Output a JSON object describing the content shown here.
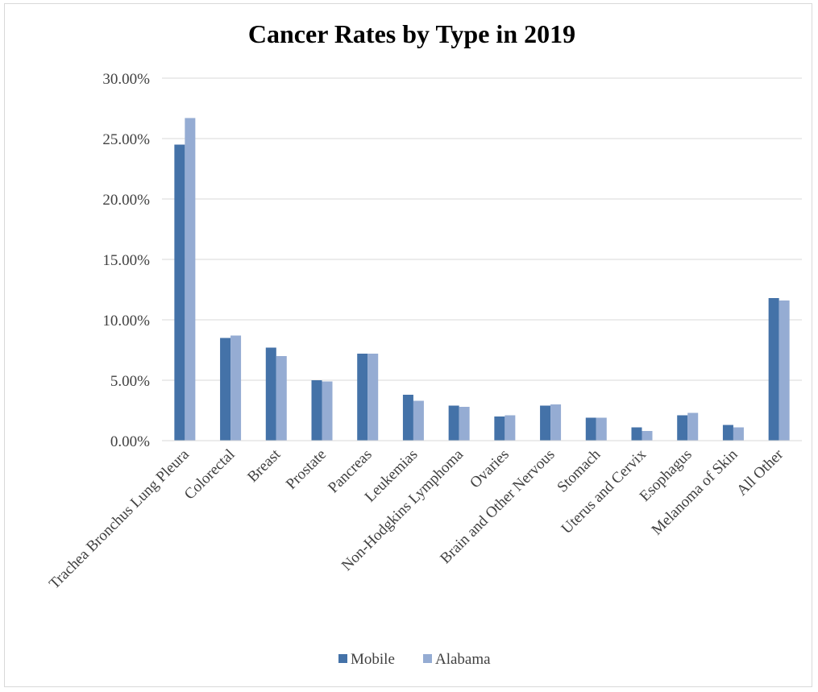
{
  "chart_data": {
    "type": "bar",
    "title": "Cancer Rates by Type in 2019",
    "xlabel": "",
    "ylabel": "",
    "ylim": [
      0,
      0.3
    ],
    "y_ticks": [
      "0.00%",
      "5.00%",
      "10.00%",
      "15.00%",
      "20.00%",
      "25.00%",
      "30.00%"
    ],
    "grid": true,
    "legend_position": "bottom",
    "categories": [
      "Trachea Bronchus Lung Pleura",
      "Colorectal",
      "Breast",
      "Prostate",
      "Pancreas",
      "Leukemias",
      "Non-Hodgkins Lymphoma",
      "Ovaries",
      "Brain and Other Nervous",
      "Stomach",
      "Uterus and Cervix",
      "Esophagus",
      "Melanoma of Skin",
      "All Other"
    ],
    "series": [
      {
        "name": "Mobile",
        "color": "#4472a8",
        "values": [
          0.245,
          0.085,
          0.077,
          0.05,
          0.072,
          0.038,
          0.029,
          0.02,
          0.029,
          0.019,
          0.011,
          0.021,
          0.013,
          0.118
        ]
      },
      {
        "name": "Alabama",
        "color": "#95acd3",
        "values": [
          0.267,
          0.087,
          0.07,
          0.049,
          0.072,
          0.033,
          0.028,
          0.021,
          0.03,
          0.019,
          0.008,
          0.023,
          0.011,
          0.116
        ]
      }
    ]
  }
}
